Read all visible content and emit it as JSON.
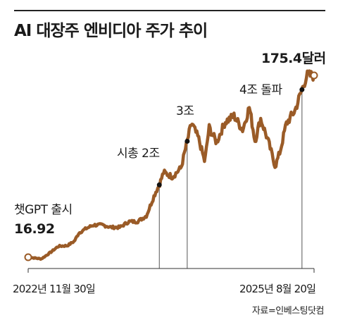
{
  "title": "AI 대장주 엔비디아 주가 추이",
  "source": "자료=인베스팅닷컴",
  "chart_data": {
    "type": "line",
    "title": "AI 대장주 엔비디아 주가 추이",
    "x_start_label": "2022년 11월 30일",
    "x_end_label": "2025년 8월 20일",
    "x": [
      "2022-11-30",
      "2023-01-15",
      "2023-02-15",
      "2023-03-15",
      "2023-04-15",
      "2023-05-10",
      "2023-05-25",
      "2023-06-20",
      "2023-07-15",
      "2023-08-15",
      "2023-09-15",
      "2023-10-15",
      "2023-11-15",
      "2023-12-15",
      "2024-01-15",
      "2024-02-15",
      "2024-02-29",
      "2024-03-15",
      "2024-04-15",
      "2024-05-15",
      "2024-06-05",
      "2024-06-20",
      "2024-07-15",
      "2024-08-05",
      "2024-08-20",
      "2024-09-15",
      "2024-10-15",
      "2024-11-15",
      "2024-12-15",
      "2025-01-07",
      "2025-01-27",
      "2025-02-15",
      "2025-03-15",
      "2025-04-07",
      "2025-04-25",
      "2025-05-15",
      "2025-06-15",
      "2025-07-09",
      "2025-07-25",
      "2025-08-20"
    ],
    "y": [
      16.92,
      15.5,
      21,
      26.5,
      27,
      31,
      38,
      42,
      45,
      45,
      43,
      43,
      48,
      48,
      53,
      73,
      80,
      91,
      87,
      95,
      118,
      134,
      120,
      100,
      130,
      117,
      135,
      140,
      128,
      148,
      118,
      138,
      117,
      96,
      110,
      133,
      145,
      163,
      175,
      175.4
    ],
    "annotations": [
      {
        "label": "챗GPT 출시",
        "value_label": "16.92",
        "date": "2022-11-30"
      },
      {
        "label": "시총 2조",
        "date": "2024-02-29"
      },
      {
        "label": "3조",
        "date": "2024-06-05"
      },
      {
        "label": "4조 돌파",
        "date": "2025-07-09"
      },
      {
        "label": "175.4달러",
        "date": "2025-08-20"
      }
    ],
    "line_color": "#9a5b27",
    "grid": false
  }
}
